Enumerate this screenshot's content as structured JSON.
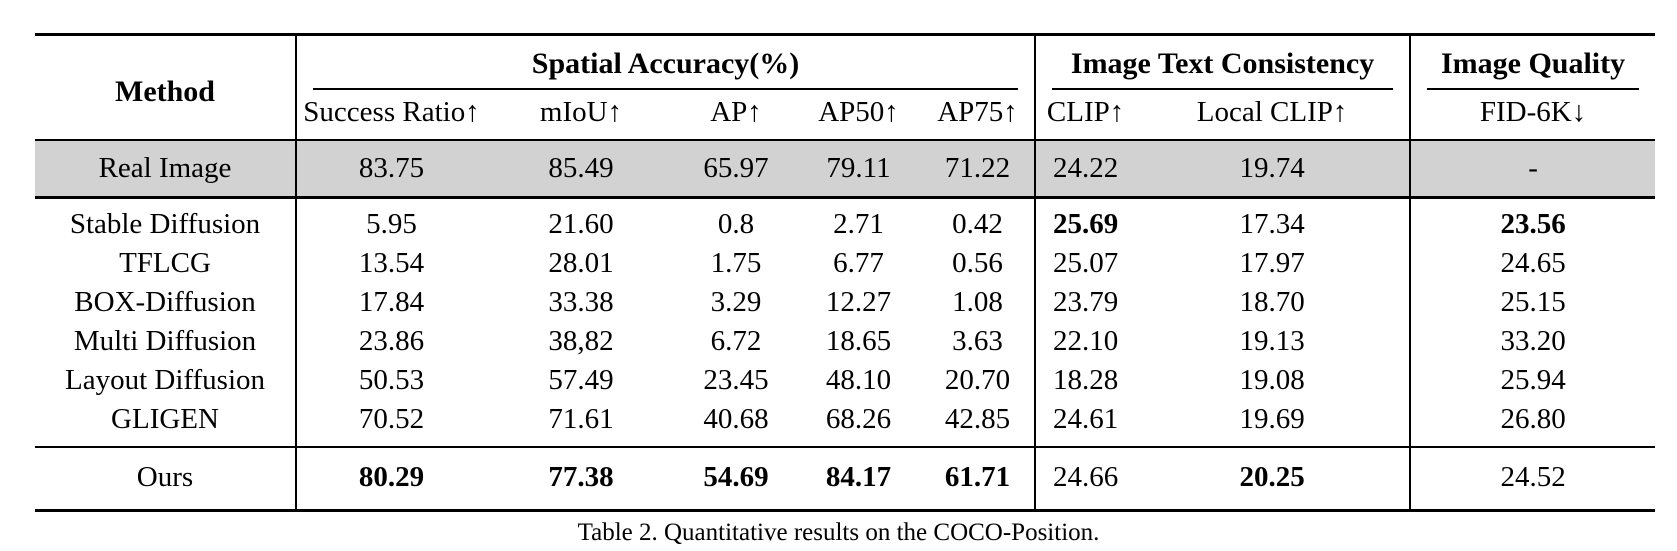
{
  "table": {
    "caption": "Table 2. Quantitative results on the COCO-Position.",
    "columns": {
      "method": "Method",
      "groups": [
        {
          "label": "Spatial Accuracy(%)",
          "cols": [
            "Success Ratio↑",
            "mIoU↑",
            "AP↑",
            "AP50↑",
            "AP75↑"
          ]
        },
        {
          "label": "Image Text Consistency",
          "cols": [
            "CLIP↑",
            "Local CLIP↑"
          ]
        },
        {
          "label": "Image Quality",
          "cols": [
            "FID-6K↓"
          ]
        }
      ]
    },
    "real_image_row": {
      "method": "Real Image",
      "values": [
        "83.75",
        "85.49",
        "65.97",
        "79.11",
        "71.22",
        "24.22",
        "19.74",
        "-"
      ],
      "bold": []
    },
    "rows": [
      {
        "method": "Stable Diffusion",
        "values": [
          "5.95",
          "21.60",
          "0.8",
          "2.71",
          "0.42",
          "25.69",
          "17.34",
          "23.56"
        ],
        "bold": [
          5,
          7
        ]
      },
      {
        "method": "TFLCG",
        "values": [
          "13.54",
          "28.01",
          "1.75",
          "6.77",
          "0.56",
          "25.07",
          "17.97",
          "24.65"
        ],
        "bold": []
      },
      {
        "method": "BOX-Diffusion",
        "values": [
          "17.84",
          "33.38",
          "3.29",
          "12.27",
          "1.08",
          "23.79",
          "18.70",
          "25.15"
        ],
        "bold": []
      },
      {
        "method": "Multi Diffusion",
        "values": [
          "23.86",
          "38,82",
          "6.72",
          "18.65",
          "3.63",
          "22.10",
          "19.13",
          "33.20"
        ],
        "bold": []
      },
      {
        "method": "Layout Diffusion",
        "values": [
          "50.53",
          "57.49",
          "23.45",
          "48.10",
          "20.70",
          "18.28",
          "19.08",
          "25.94"
        ],
        "bold": []
      },
      {
        "method": "GLIGEN",
        "values": [
          "70.52",
          "71.61",
          "40.68",
          "68.26",
          "42.85",
          "24.61",
          "19.69",
          "26.80"
        ],
        "bold": []
      }
    ],
    "ours_row": {
      "method": "Ours",
      "values": [
        "80.29",
        "77.38",
        "54.69",
        "84.17",
        "61.71",
        "24.66",
        "20.25",
        "24.52"
      ],
      "bold": [
        0,
        1,
        2,
        3,
        4,
        6
      ]
    }
  },
  "colors": {
    "highlight_row_bg": "#d2d2d2",
    "rule": "#000000",
    "text": "#000000"
  }
}
